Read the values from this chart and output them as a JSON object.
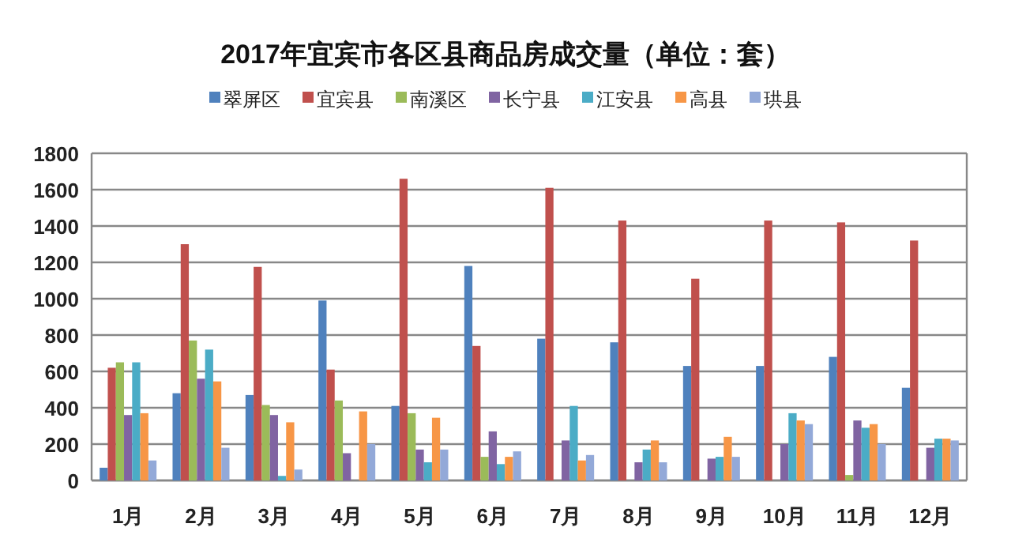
{
  "chart_data": {
    "type": "bar",
    "title": "2017年宜宾市各区县商品房成交量（单位：套）",
    "categories": [
      "1月",
      "2月",
      "3月",
      "4月",
      "5月",
      "6月",
      "7月",
      "8月",
      "9月",
      "10月",
      "11月",
      "12月"
    ],
    "series": [
      {
        "name": "翠屏区",
        "color": "#4f81bd",
        "values": [
          70,
          480,
          470,
          990,
          410,
          1180,
          780,
          760,
          630,
          630,
          680,
          510
        ]
      },
      {
        "name": "宜宾县",
        "color": "#c0504d",
        "values": [
          620,
          1300,
          1175,
          610,
          1660,
          740,
          1610,
          1430,
          1110,
          1430,
          1420,
          1320
        ]
      },
      {
        "name": "南溪区",
        "color": "#9bbb59",
        "values": [
          650,
          770,
          415,
          440,
          370,
          130,
          null,
          null,
          null,
          null,
          30,
          null
        ]
      },
      {
        "name": "长宁县",
        "color": "#8064a2",
        "values": [
          360,
          560,
          360,
          150,
          170,
          270,
          220,
          100,
          120,
          200,
          330,
          180
        ]
      },
      {
        "name": "江安县",
        "color": "#4bacc6",
        "values": [
          650,
          720,
          25,
          null,
          100,
          90,
          410,
          170,
          130,
          370,
          290,
          230
        ]
      },
      {
        "name": "高县",
        "color": "#f79646",
        "values": [
          370,
          545,
          320,
          380,
          345,
          130,
          110,
          220,
          240,
          330,
          310,
          230
        ]
      },
      {
        "name": "珙县",
        "color": "#93a9d8",
        "values": [
          110,
          180,
          60,
          200,
          170,
          160,
          140,
          100,
          130,
          310,
          200,
          220
        ]
      }
    ],
    "ylim": [
      0,
      1800
    ],
    "yticks": [
      0,
      200,
      400,
      600,
      800,
      1000,
      1200,
      1400,
      1600,
      1800
    ],
    "grid": "y",
    "legend": "top"
  }
}
